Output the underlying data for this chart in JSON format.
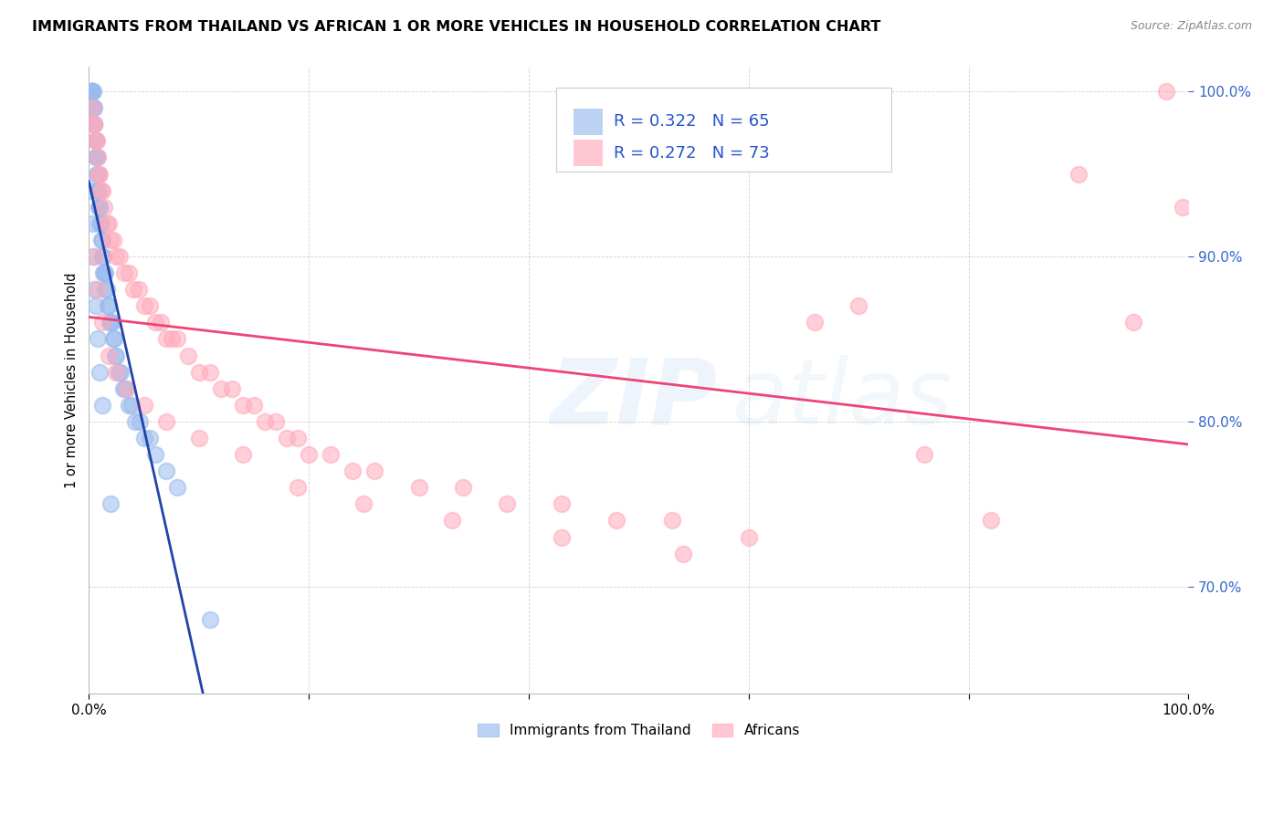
{
  "title": "IMMIGRANTS FROM THAILAND VS AFRICAN 1 OR MORE VEHICLES IN HOUSEHOLD CORRELATION CHART",
  "source": "Source: ZipAtlas.com",
  "ylabel": "1 or more Vehicles in Household",
  "legend_label1": "Immigrants from Thailand",
  "legend_label2": "Africans",
  "R1": 0.322,
  "N1": 65,
  "R2": 0.272,
  "N2": 73,
  "color_thailand": "#99BBEE",
  "color_african": "#FFAABB",
  "color_line_thailand": "#2244AA",
  "color_line_african": "#EE4477",
  "watermark_zip": "ZIP",
  "watermark_atlas": "atlas",
  "xlim": [
    0.0,
    1.0
  ],
  "ylim": [
    0.635,
    1.015
  ],
  "yticks": [
    0.7,
    0.8,
    0.9,
    1.0
  ],
  "ytick_labels": [
    "70.0%",
    "80.0%",
    "90.0%",
    "100.0%"
  ],
  "thailand_x": [
    0.001,
    0.002,
    0.003,
    0.003,
    0.004,
    0.004,
    0.004,
    0.005,
    0.005,
    0.005,
    0.006,
    0.006,
    0.006,
    0.007,
    0.007,
    0.007,
    0.008,
    0.008,
    0.009,
    0.009,
    0.01,
    0.01,
    0.01,
    0.011,
    0.011,
    0.012,
    0.012,
    0.013,
    0.013,
    0.014,
    0.015,
    0.015,
    0.016,
    0.017,
    0.018,
    0.019,
    0.02,
    0.021,
    0.022,
    0.023,
    0.024,
    0.025,
    0.027,
    0.029,
    0.031,
    0.033,
    0.036,
    0.039,
    0.042,
    0.046,
    0.05,
    0.055,
    0.06,
    0.07,
    0.08,
    0.002,
    0.003,
    0.004,
    0.005,
    0.006,
    0.008,
    0.01,
    0.012,
    0.02,
    0.11
  ],
  "thailand_y": [
    1.0,
    1.0,
    1.0,
    1.0,
    1.0,
    0.99,
    0.99,
    0.99,
    0.98,
    0.98,
    0.97,
    0.97,
    0.96,
    0.96,
    0.96,
    0.95,
    0.95,
    0.94,
    0.94,
    0.93,
    0.93,
    0.93,
    0.92,
    0.92,
    0.91,
    0.91,
    0.9,
    0.9,
    0.89,
    0.89,
    0.89,
    0.88,
    0.88,
    0.87,
    0.87,
    0.86,
    0.86,
    0.86,
    0.85,
    0.85,
    0.84,
    0.84,
    0.83,
    0.83,
    0.82,
    0.82,
    0.81,
    0.81,
    0.8,
    0.8,
    0.79,
    0.79,
    0.78,
    0.77,
    0.76,
    0.94,
    0.92,
    0.9,
    0.88,
    0.87,
    0.85,
    0.83,
    0.81,
    0.75,
    0.68
  ],
  "african_x": [
    0.003,
    0.004,
    0.005,
    0.006,
    0.007,
    0.008,
    0.009,
    0.01,
    0.011,
    0.012,
    0.014,
    0.016,
    0.018,
    0.02,
    0.022,
    0.025,
    0.028,
    0.032,
    0.036,
    0.04,
    0.045,
    0.05,
    0.055,
    0.06,
    0.065,
    0.07,
    0.075,
    0.08,
    0.09,
    0.1,
    0.11,
    0.12,
    0.13,
    0.14,
    0.15,
    0.16,
    0.17,
    0.18,
    0.19,
    0.2,
    0.22,
    0.24,
    0.26,
    0.3,
    0.34,
    0.38,
    0.43,
    0.48,
    0.53,
    0.6,
    0.005,
    0.008,
    0.012,
    0.018,
    0.025,
    0.035,
    0.05,
    0.07,
    0.1,
    0.14,
    0.19,
    0.25,
    0.33,
    0.43,
    0.54,
    0.66,
    0.7,
    0.76,
    0.82,
    0.9,
    0.95,
    0.98,
    0.995
  ],
  "african_y": [
    0.99,
    0.98,
    0.98,
    0.97,
    0.97,
    0.96,
    0.95,
    0.95,
    0.94,
    0.94,
    0.93,
    0.92,
    0.92,
    0.91,
    0.91,
    0.9,
    0.9,
    0.89,
    0.89,
    0.88,
    0.88,
    0.87,
    0.87,
    0.86,
    0.86,
    0.85,
    0.85,
    0.85,
    0.84,
    0.83,
    0.83,
    0.82,
    0.82,
    0.81,
    0.81,
    0.8,
    0.8,
    0.79,
    0.79,
    0.78,
    0.78,
    0.77,
    0.77,
    0.76,
    0.76,
    0.75,
    0.75,
    0.74,
    0.74,
    0.73,
    0.9,
    0.88,
    0.86,
    0.84,
    0.83,
    0.82,
    0.81,
    0.8,
    0.79,
    0.78,
    0.76,
    0.75,
    0.74,
    0.73,
    0.72,
    0.86,
    0.87,
    0.78,
    0.74,
    0.95,
    0.86,
    1.0,
    0.93
  ]
}
